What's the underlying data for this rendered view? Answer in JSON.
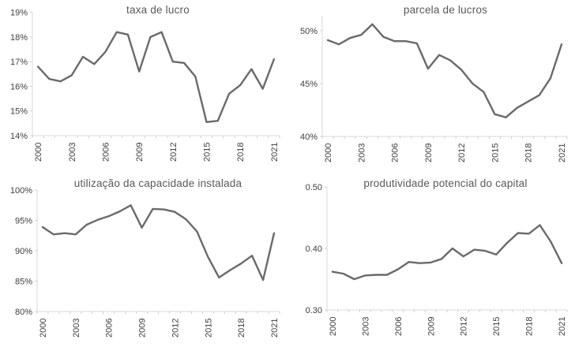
{
  "page": {
    "background": "#ffffff"
  },
  "style": {
    "line_color": "#6a6a6a",
    "axis_color": "#d9d9d9",
    "tick_color": "#cfcfcf",
    "tick_label_color": "#404040",
    "title_color": "#595959"
  },
  "chart_data": [
    {
      "type": "line",
      "title": "taxa de lucro",
      "x": [
        2000,
        2001,
        2002,
        2003,
        2004,
        2005,
        2006,
        2007,
        2008,
        2009,
        2010,
        2011,
        2012,
        2013,
        2014,
        2015,
        2016,
        2017,
        2018,
        2019,
        2020,
        2021
      ],
      "values": [
        16.8,
        16.3,
        16.2,
        16.45,
        17.2,
        16.9,
        17.4,
        18.2,
        18.1,
        16.6,
        18.0,
        18.2,
        17.0,
        16.95,
        16.4,
        14.55,
        14.6,
        15.7,
        16.05,
        16.7,
        15.9,
        17.1
      ],
      "ylim": [
        14,
        19
      ],
      "ytick_values": [
        14,
        15,
        16,
        17,
        18,
        19
      ],
      "ytick_labels": [
        "14%",
        "15%",
        "16%",
        "17%",
        "18%",
        "19%"
      ],
      "xtick_indices": [
        0,
        3,
        6,
        9,
        12,
        15,
        18,
        21
      ],
      "xtick_labels": [
        "2000",
        "2003",
        "2006",
        "2009",
        "2012",
        "2015",
        "2018",
        "2021"
      ],
      "grid": false,
      "legend": false
    },
    {
      "type": "line",
      "title": "parcela de lucros",
      "x": [
        2000,
        2001,
        2002,
        2003,
        2004,
        2005,
        2006,
        2007,
        2008,
        2009,
        2010,
        2011,
        2012,
        2013,
        2014,
        2015,
        2016,
        2017,
        2018,
        2019,
        2020,
        2021
      ],
      "values": [
        49.1,
        48.7,
        49.3,
        49.6,
        50.6,
        49.4,
        49.0,
        49.0,
        48.8,
        46.4,
        47.7,
        47.2,
        46.3,
        45.0,
        44.2,
        42.1,
        41.8,
        42.7,
        43.3,
        43.9,
        45.5,
        48.7
      ],
      "ylim": [
        40,
        51.4
      ],
      "ytick_values": [
        40,
        45,
        50
      ],
      "ytick_labels": [
        "40%",
        "45%",
        "50%"
      ],
      "xtick_indices": [
        0,
        3,
        6,
        9,
        12,
        15,
        18,
        21
      ],
      "xtick_labels": [
        "2000",
        "2003",
        "2006",
        "2009",
        "2012",
        "2015",
        "2018",
        "2021"
      ],
      "grid": false,
      "legend": false
    },
    {
      "type": "line",
      "title": "utilização da capacidade instalada",
      "x": [
        2000,
        2001,
        2002,
        2003,
        2004,
        2005,
        2006,
        2007,
        2008,
        2009,
        2010,
        2011,
        2012,
        2013,
        2014,
        2015,
        2016,
        2017,
        2018,
        2019,
        2020,
        2021
      ],
      "values": [
        93.9,
        92.7,
        92.9,
        92.7,
        94.3,
        95.1,
        95.7,
        96.5,
        97.5,
        93.8,
        96.9,
        96.8,
        96.4,
        95.2,
        93.2,
        89.0,
        85.6,
        86.8,
        87.9,
        89.2,
        85.2,
        92.9
      ],
      "ylim": [
        80,
        100
      ],
      "ytick_values": [
        80,
        85,
        90,
        95,
        100
      ],
      "ytick_labels": [
        "80%",
        "85%",
        "90%",
        "95%",
        "100%"
      ],
      "xtick_indices": [
        0,
        3,
        6,
        9,
        12,
        15,
        18,
        21
      ],
      "xtick_labels": [
        "2000",
        "2003",
        "2006",
        "2009",
        "2012",
        "2015",
        "2018",
        "2021"
      ],
      "grid": false,
      "legend": false
    },
    {
      "type": "line",
      "title": "produtividade potencial do capital",
      "x": [
        2000,
        2001,
        2002,
        2003,
        2004,
        2005,
        2006,
        2007,
        2008,
        2009,
        2010,
        2011,
        2012,
        2013,
        2014,
        2015,
        2016,
        2017,
        2018,
        2019,
        2020,
        2021
      ],
      "values": [
        0.362,
        0.359,
        0.35,
        0.356,
        0.357,
        0.357,
        0.366,
        0.378,
        0.376,
        0.377,
        0.383,
        0.4,
        0.387,
        0.398,
        0.396,
        0.39,
        0.409,
        0.425,
        0.424,
        0.438,
        0.411,
        0.376
      ],
      "ylim": [
        0.3,
        0.5
      ],
      "ytick_values": [
        0.3,
        0.4,
        0.5
      ],
      "ytick_labels": [
        "0.30",
        "0.40",
        "0.50"
      ],
      "xtick_indices": [
        0,
        3,
        6,
        9,
        12,
        15,
        18,
        21
      ],
      "xtick_labels": [
        "2000",
        "2003",
        "2006",
        "2009",
        "2012",
        "2015",
        "2018",
        "2021"
      ],
      "grid": false,
      "legend": false
    }
  ]
}
